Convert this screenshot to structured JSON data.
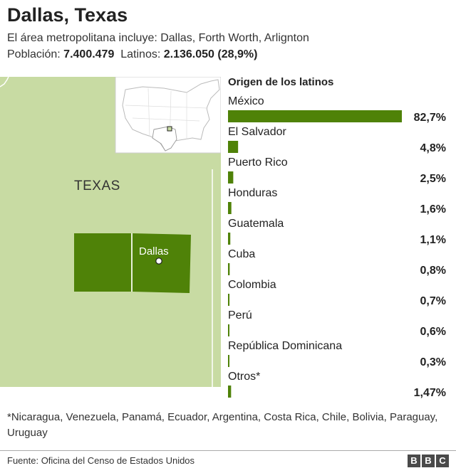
{
  "header": {
    "title": "Dallas, Texas",
    "subtitle": "El área metropolitana incluye: Dallas, Forth Worth, Arlignton",
    "population_label": "Población:",
    "population_value": "7.400.479",
    "latinos_label": "Latinos:",
    "latinos_value": "2.136.050 (28,9%)"
  },
  "map": {
    "state_label": "TEXAS",
    "city_label": "Dallas",
    "colors": {
      "land": "#c8dba3",
      "metro": "#4f8208",
      "border": "#ffffff",
      "inset_land": "#ffffff",
      "inset_lines": "#bbbbbb"
    }
  },
  "chart_data": {
    "type": "bar",
    "title": "Origen de los latinos",
    "categories": [
      "México",
      "El Salvador",
      "Puerto Rico",
      "Honduras",
      "Guatemala",
      "Cuba",
      "Colombia",
      "Perú",
      "República Dominicana",
      "Otros*"
    ],
    "values": [
      82.7,
      4.8,
      2.5,
      1.6,
      1.1,
      0.8,
      0.7,
      0.6,
      0.3,
      1.47
    ],
    "value_labels": [
      "82,7%",
      "4,8%",
      "2,5%",
      "1,6%",
      "1,1%",
      "0,8%",
      "0,7%",
      "0,6%",
      "0,3%",
      "1,47%"
    ],
    "unit": "%",
    "color": "#4f8208"
  },
  "footnote": "*Nicaragua, Venezuela, Panamá, Ecuador, Argentina, Costa Rica, Chile, Bolivia, Paraguay, Uruguay",
  "source": "Fuente: Oficina del Censo de Estados Unidos",
  "logo": [
    "B",
    "B",
    "C"
  ]
}
